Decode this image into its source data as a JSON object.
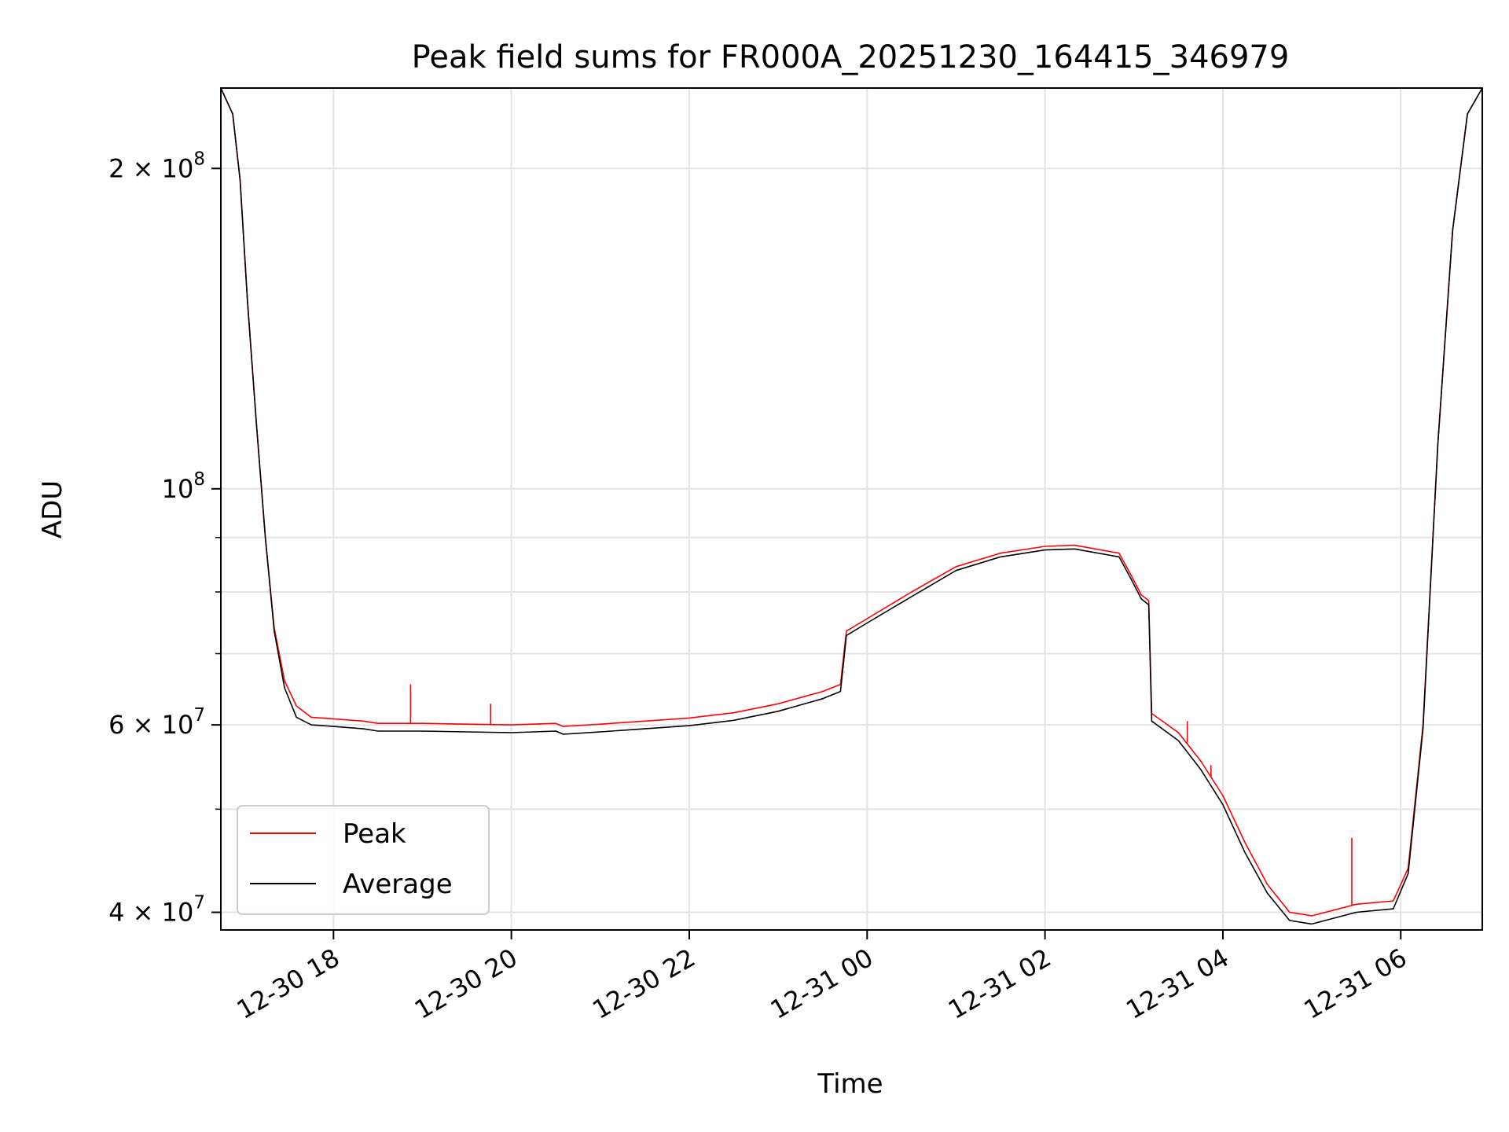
{
  "chart_data": {
    "type": "line",
    "title": "Peak field sums for FR000A_20251230_164415_346979",
    "xlabel": "Time",
    "ylabel": "ADU",
    "y_scale": "log",
    "grid": true,
    "legend_position": "lower-left",
    "xlim": [
      "2025-12-30 16:44",
      "2025-12-31 06:55"
    ],
    "ylim": [
      38500000,
      238000000
    ],
    "x_ticks": [
      {
        "value": "2025-12-30 18:00",
        "label": "12-30 18"
      },
      {
        "value": "2025-12-30 20:00",
        "label": "12-30 20"
      },
      {
        "value": "2025-12-30 22:00",
        "label": "12-30 22"
      },
      {
        "value": "2025-12-31 00:00",
        "label": "12-31 00"
      },
      {
        "value": "2025-12-31 02:00",
        "label": "12-31 02"
      },
      {
        "value": "2025-12-31 04:00",
        "label": "12-31 04"
      },
      {
        "value": "2025-12-31 06:00",
        "label": "12-31 06"
      }
    ],
    "y_ticks": [
      {
        "value": 40000000,
        "base": "4 × 10",
        "exp": "7"
      },
      {
        "value": 60000000,
        "base": "6 × 10",
        "exp": "7"
      },
      {
        "value": 100000000,
        "base": "10",
        "exp": "8"
      },
      {
        "value": 200000000,
        "base": "2 × 10",
        "exp": "8"
      }
    ],
    "y_minor_ticks": [
      50000000,
      70000000,
      80000000,
      90000000
    ],
    "series": [
      {
        "name": "Peak",
        "color": "#ff0000",
        "points": [
          [
            "2025-12-30 16:44",
            238000000
          ],
          [
            "2025-12-30 16:52",
            225000000
          ],
          [
            "2025-12-30 16:57",
            195000000
          ],
          [
            "2025-12-30 17:02",
            150000000
          ],
          [
            "2025-12-30 17:08",
            115000000
          ],
          [
            "2025-12-30 17:14",
            90000000
          ],
          [
            "2025-12-30 17:20",
            74000000
          ],
          [
            "2025-12-30 17:27",
            66000000
          ],
          [
            "2025-12-30 17:35",
            62500000
          ],
          [
            "2025-12-30 17:45",
            61000000
          ],
          [
            "2025-12-30 18:00",
            60800000
          ],
          [
            "2025-12-30 18:20",
            60500000
          ],
          [
            "2025-12-30 18:30",
            60200000
          ],
          [
            "2025-12-30 19:00",
            60200000
          ],
          [
            "2025-12-30 19:30",
            60100000
          ],
          [
            "2025-12-30 20:00",
            60000000
          ],
          [
            "2025-12-30 20:30",
            60200000
          ],
          [
            "2025-12-30 20:35",
            59800000
          ],
          [
            "2025-12-30 21:00",
            60100000
          ],
          [
            "2025-12-30 21:30",
            60500000
          ],
          [
            "2025-12-30 22:00",
            60900000
          ],
          [
            "2025-12-30 22:30",
            61600000
          ],
          [
            "2025-12-30 23:00",
            62800000
          ],
          [
            "2025-12-30 23:30",
            64500000
          ],
          [
            "2025-12-30 23:42",
            65500000
          ],
          [
            "2025-12-30 23:46",
            73500000
          ],
          [
            "2025-12-31 00:00",
            75500000
          ],
          [
            "2025-12-31 00:30",
            80000000
          ],
          [
            "2025-12-31 01:00",
            84500000
          ],
          [
            "2025-12-31 01:30",
            87000000
          ],
          [
            "2025-12-31 02:00",
            88300000
          ],
          [
            "2025-12-31 02:20",
            88500000
          ],
          [
            "2025-12-31 02:50",
            87000000
          ],
          [
            "2025-12-31 02:58",
            83000000
          ],
          [
            "2025-12-31 03:05",
            79500000
          ],
          [
            "2025-12-31 03:10",
            78500000
          ],
          [
            "2025-12-31 03:12",
            61500000
          ],
          [
            "2025-12-31 03:30",
            59000000
          ],
          [
            "2025-12-31 03:45",
            55500000
          ],
          [
            "2025-12-31 04:00",
            51500000
          ],
          [
            "2025-12-31 04:15",
            46500000
          ],
          [
            "2025-12-31 04:30",
            42500000
          ],
          [
            "2025-12-31 04:45",
            40000000
          ],
          [
            "2025-12-31 05:00",
            39700000
          ],
          [
            "2025-12-31 05:30",
            40700000
          ],
          [
            "2025-12-31 05:55",
            41000000
          ],
          [
            "2025-12-31 06:05",
            44000000
          ],
          [
            "2025-12-31 06:15",
            60000000
          ],
          [
            "2025-12-31 06:25",
            110000000
          ],
          [
            "2025-12-31 06:35",
            175000000
          ],
          [
            "2025-12-31 06:45",
            225000000
          ],
          [
            "2025-12-31 06:55",
            238000000
          ]
        ]
      },
      {
        "name": "Average",
        "color": "#000000",
        "points": [
          [
            "2025-12-30 16:44",
            238000000
          ],
          [
            "2025-12-30 16:52",
            225000000
          ],
          [
            "2025-12-30 16:57",
            195000000
          ],
          [
            "2025-12-30 17:02",
            150000000
          ],
          [
            "2025-12-30 17:08",
            115000000
          ],
          [
            "2025-12-30 17:14",
            90000000
          ],
          [
            "2025-12-30 17:20",
            73500000
          ],
          [
            "2025-12-30 17:27",
            65000000
          ],
          [
            "2025-12-30 17:35",
            61000000
          ],
          [
            "2025-12-30 17:45",
            60000000
          ],
          [
            "2025-12-30 18:00",
            59800000
          ],
          [
            "2025-12-30 18:20",
            59500000
          ],
          [
            "2025-12-30 18:30",
            59200000
          ],
          [
            "2025-12-30 19:00",
            59200000
          ],
          [
            "2025-12-30 19:30",
            59100000
          ],
          [
            "2025-12-30 20:00",
            59000000
          ],
          [
            "2025-12-30 20:30",
            59200000
          ],
          [
            "2025-12-30 20:35",
            58800000
          ],
          [
            "2025-12-30 21:00",
            59100000
          ],
          [
            "2025-12-30 21:30",
            59500000
          ],
          [
            "2025-12-30 22:00",
            59900000
          ],
          [
            "2025-12-30 22:30",
            60600000
          ],
          [
            "2025-12-30 23:00",
            61800000
          ],
          [
            "2025-12-30 23:30",
            63500000
          ],
          [
            "2025-12-30 23:42",
            64500000
          ],
          [
            "2025-12-30 23:46",
            72800000
          ],
          [
            "2025-12-31 00:00",
            74800000
          ],
          [
            "2025-12-31 00:30",
            79200000
          ],
          [
            "2025-12-31 01:00",
            83800000
          ],
          [
            "2025-12-31 01:30",
            86300000
          ],
          [
            "2025-12-31 02:00",
            87600000
          ],
          [
            "2025-12-31 02:20",
            87800000
          ],
          [
            "2025-12-31 02:50",
            86300000
          ],
          [
            "2025-12-31 02:58",
            82300000
          ],
          [
            "2025-12-31 03:05",
            78800000
          ],
          [
            "2025-12-31 03:10",
            77800000
          ],
          [
            "2025-12-31 03:12",
            60500000
          ],
          [
            "2025-12-31 03:30",
            58000000
          ],
          [
            "2025-12-31 03:45",
            54500000
          ],
          [
            "2025-12-31 04:00",
            50500000
          ],
          [
            "2025-12-31 04:15",
            45500000
          ],
          [
            "2025-12-31 04:30",
            41700000
          ],
          [
            "2025-12-31 04:45",
            39300000
          ],
          [
            "2025-12-31 05:00",
            39000000
          ],
          [
            "2025-12-31 05:30",
            40000000
          ],
          [
            "2025-12-31 05:55",
            40300000
          ],
          [
            "2025-12-31 06:05",
            43500000
          ],
          [
            "2025-12-31 06:15",
            59500000
          ],
          [
            "2025-12-31 06:25",
            110000000
          ],
          [
            "2025-12-31 06:35",
            175000000
          ],
          [
            "2025-12-31 06:45",
            225000000
          ],
          [
            "2025-12-31 06:55",
            238000000
          ]
        ]
      }
    ],
    "annotations": [
      {
        "series": "Peak",
        "x": "2025-12-30 18:52",
        "y": 65500000
      },
      {
        "series": "Peak",
        "x": "2025-12-30 19:46",
        "y": 62800000
      },
      {
        "series": "Peak",
        "x": "2025-12-31 03:36",
        "y": 60500000
      },
      {
        "series": "Peak",
        "x": "2025-12-31 03:52",
        "y": 55000000
      },
      {
        "series": "Peak",
        "x": "2025-12-31 05:27",
        "y": 47000000
      }
    ]
  }
}
